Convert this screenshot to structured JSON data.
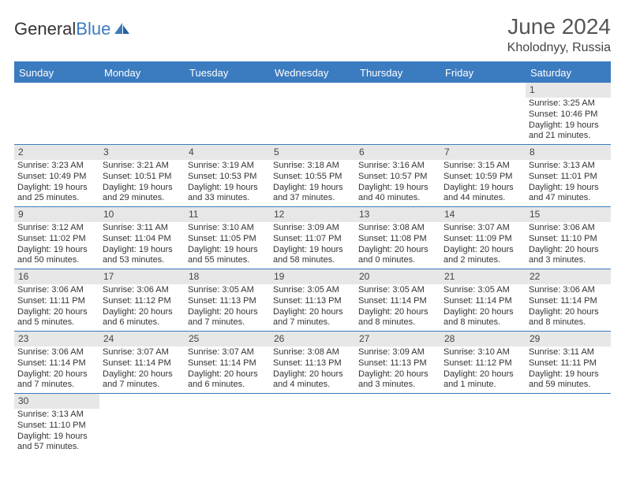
{
  "logo": {
    "text_a": "General",
    "text_b": "Blue"
  },
  "title": {
    "month": "June 2024",
    "location": "Kholodnyy, Russia"
  },
  "colors": {
    "accent": "#3b7bbf",
    "daybar": "#e7e7e7",
    "text": "#333333"
  },
  "day_headers": [
    "Sunday",
    "Monday",
    "Tuesday",
    "Wednesday",
    "Thursday",
    "Friday",
    "Saturday"
  ],
  "weeks": [
    [
      {
        "n": "",
        "empty": true
      },
      {
        "n": "",
        "empty": true
      },
      {
        "n": "",
        "empty": true
      },
      {
        "n": "",
        "empty": true
      },
      {
        "n": "",
        "empty": true
      },
      {
        "n": "",
        "empty": true
      },
      {
        "n": "1",
        "sr": "Sunrise: 3:25 AM",
        "ss": "Sunset: 10:46 PM",
        "dl1": "Daylight: 19 hours",
        "dl2": "and 21 minutes."
      }
    ],
    [
      {
        "n": "2",
        "sr": "Sunrise: 3:23 AM",
        "ss": "Sunset: 10:49 PM",
        "dl1": "Daylight: 19 hours",
        "dl2": "and 25 minutes."
      },
      {
        "n": "3",
        "sr": "Sunrise: 3:21 AM",
        "ss": "Sunset: 10:51 PM",
        "dl1": "Daylight: 19 hours",
        "dl2": "and 29 minutes."
      },
      {
        "n": "4",
        "sr": "Sunrise: 3:19 AM",
        "ss": "Sunset: 10:53 PM",
        "dl1": "Daylight: 19 hours",
        "dl2": "and 33 minutes."
      },
      {
        "n": "5",
        "sr": "Sunrise: 3:18 AM",
        "ss": "Sunset: 10:55 PM",
        "dl1": "Daylight: 19 hours",
        "dl2": "and 37 minutes."
      },
      {
        "n": "6",
        "sr": "Sunrise: 3:16 AM",
        "ss": "Sunset: 10:57 PM",
        "dl1": "Daylight: 19 hours",
        "dl2": "and 40 minutes."
      },
      {
        "n": "7",
        "sr": "Sunrise: 3:15 AM",
        "ss": "Sunset: 10:59 PM",
        "dl1": "Daylight: 19 hours",
        "dl2": "and 44 minutes."
      },
      {
        "n": "8",
        "sr": "Sunrise: 3:13 AM",
        "ss": "Sunset: 11:01 PM",
        "dl1": "Daylight: 19 hours",
        "dl2": "and 47 minutes."
      }
    ],
    [
      {
        "n": "9",
        "sr": "Sunrise: 3:12 AM",
        "ss": "Sunset: 11:02 PM",
        "dl1": "Daylight: 19 hours",
        "dl2": "and 50 minutes."
      },
      {
        "n": "10",
        "sr": "Sunrise: 3:11 AM",
        "ss": "Sunset: 11:04 PM",
        "dl1": "Daylight: 19 hours",
        "dl2": "and 53 minutes."
      },
      {
        "n": "11",
        "sr": "Sunrise: 3:10 AM",
        "ss": "Sunset: 11:05 PM",
        "dl1": "Daylight: 19 hours",
        "dl2": "and 55 minutes."
      },
      {
        "n": "12",
        "sr": "Sunrise: 3:09 AM",
        "ss": "Sunset: 11:07 PM",
        "dl1": "Daylight: 19 hours",
        "dl2": "and 58 minutes."
      },
      {
        "n": "13",
        "sr": "Sunrise: 3:08 AM",
        "ss": "Sunset: 11:08 PM",
        "dl1": "Daylight: 20 hours",
        "dl2": "and 0 minutes."
      },
      {
        "n": "14",
        "sr": "Sunrise: 3:07 AM",
        "ss": "Sunset: 11:09 PM",
        "dl1": "Daylight: 20 hours",
        "dl2": "and 2 minutes."
      },
      {
        "n": "15",
        "sr": "Sunrise: 3:06 AM",
        "ss": "Sunset: 11:10 PM",
        "dl1": "Daylight: 20 hours",
        "dl2": "and 3 minutes."
      }
    ],
    [
      {
        "n": "16",
        "sr": "Sunrise: 3:06 AM",
        "ss": "Sunset: 11:11 PM",
        "dl1": "Daylight: 20 hours",
        "dl2": "and 5 minutes."
      },
      {
        "n": "17",
        "sr": "Sunrise: 3:06 AM",
        "ss": "Sunset: 11:12 PM",
        "dl1": "Daylight: 20 hours",
        "dl2": "and 6 minutes."
      },
      {
        "n": "18",
        "sr": "Sunrise: 3:05 AM",
        "ss": "Sunset: 11:13 PM",
        "dl1": "Daylight: 20 hours",
        "dl2": "and 7 minutes."
      },
      {
        "n": "19",
        "sr": "Sunrise: 3:05 AM",
        "ss": "Sunset: 11:13 PM",
        "dl1": "Daylight: 20 hours",
        "dl2": "and 7 minutes."
      },
      {
        "n": "20",
        "sr": "Sunrise: 3:05 AM",
        "ss": "Sunset: 11:14 PM",
        "dl1": "Daylight: 20 hours",
        "dl2": "and 8 minutes."
      },
      {
        "n": "21",
        "sr": "Sunrise: 3:05 AM",
        "ss": "Sunset: 11:14 PM",
        "dl1": "Daylight: 20 hours",
        "dl2": "and 8 minutes."
      },
      {
        "n": "22",
        "sr": "Sunrise: 3:06 AM",
        "ss": "Sunset: 11:14 PM",
        "dl1": "Daylight: 20 hours",
        "dl2": "and 8 minutes."
      }
    ],
    [
      {
        "n": "23",
        "sr": "Sunrise: 3:06 AM",
        "ss": "Sunset: 11:14 PM",
        "dl1": "Daylight: 20 hours",
        "dl2": "and 7 minutes."
      },
      {
        "n": "24",
        "sr": "Sunrise: 3:07 AM",
        "ss": "Sunset: 11:14 PM",
        "dl1": "Daylight: 20 hours",
        "dl2": "and 7 minutes."
      },
      {
        "n": "25",
        "sr": "Sunrise: 3:07 AM",
        "ss": "Sunset: 11:14 PM",
        "dl1": "Daylight: 20 hours",
        "dl2": "and 6 minutes."
      },
      {
        "n": "26",
        "sr": "Sunrise: 3:08 AM",
        "ss": "Sunset: 11:13 PM",
        "dl1": "Daylight: 20 hours",
        "dl2": "and 4 minutes."
      },
      {
        "n": "27",
        "sr": "Sunrise: 3:09 AM",
        "ss": "Sunset: 11:13 PM",
        "dl1": "Daylight: 20 hours",
        "dl2": "and 3 minutes."
      },
      {
        "n": "28",
        "sr": "Sunrise: 3:10 AM",
        "ss": "Sunset: 11:12 PM",
        "dl1": "Daylight: 20 hours",
        "dl2": "and 1 minute."
      },
      {
        "n": "29",
        "sr": "Sunrise: 3:11 AM",
        "ss": "Sunset: 11:11 PM",
        "dl1": "Daylight: 19 hours",
        "dl2": "and 59 minutes."
      }
    ],
    [
      {
        "n": "30",
        "sr": "Sunrise: 3:13 AM",
        "ss": "Sunset: 11:10 PM",
        "dl1": "Daylight: 19 hours",
        "dl2": "and 57 minutes."
      },
      {
        "n": "",
        "empty": true
      },
      {
        "n": "",
        "empty": true
      },
      {
        "n": "",
        "empty": true
      },
      {
        "n": "",
        "empty": true
      },
      {
        "n": "",
        "empty": true
      },
      {
        "n": "",
        "empty": true
      }
    ]
  ]
}
